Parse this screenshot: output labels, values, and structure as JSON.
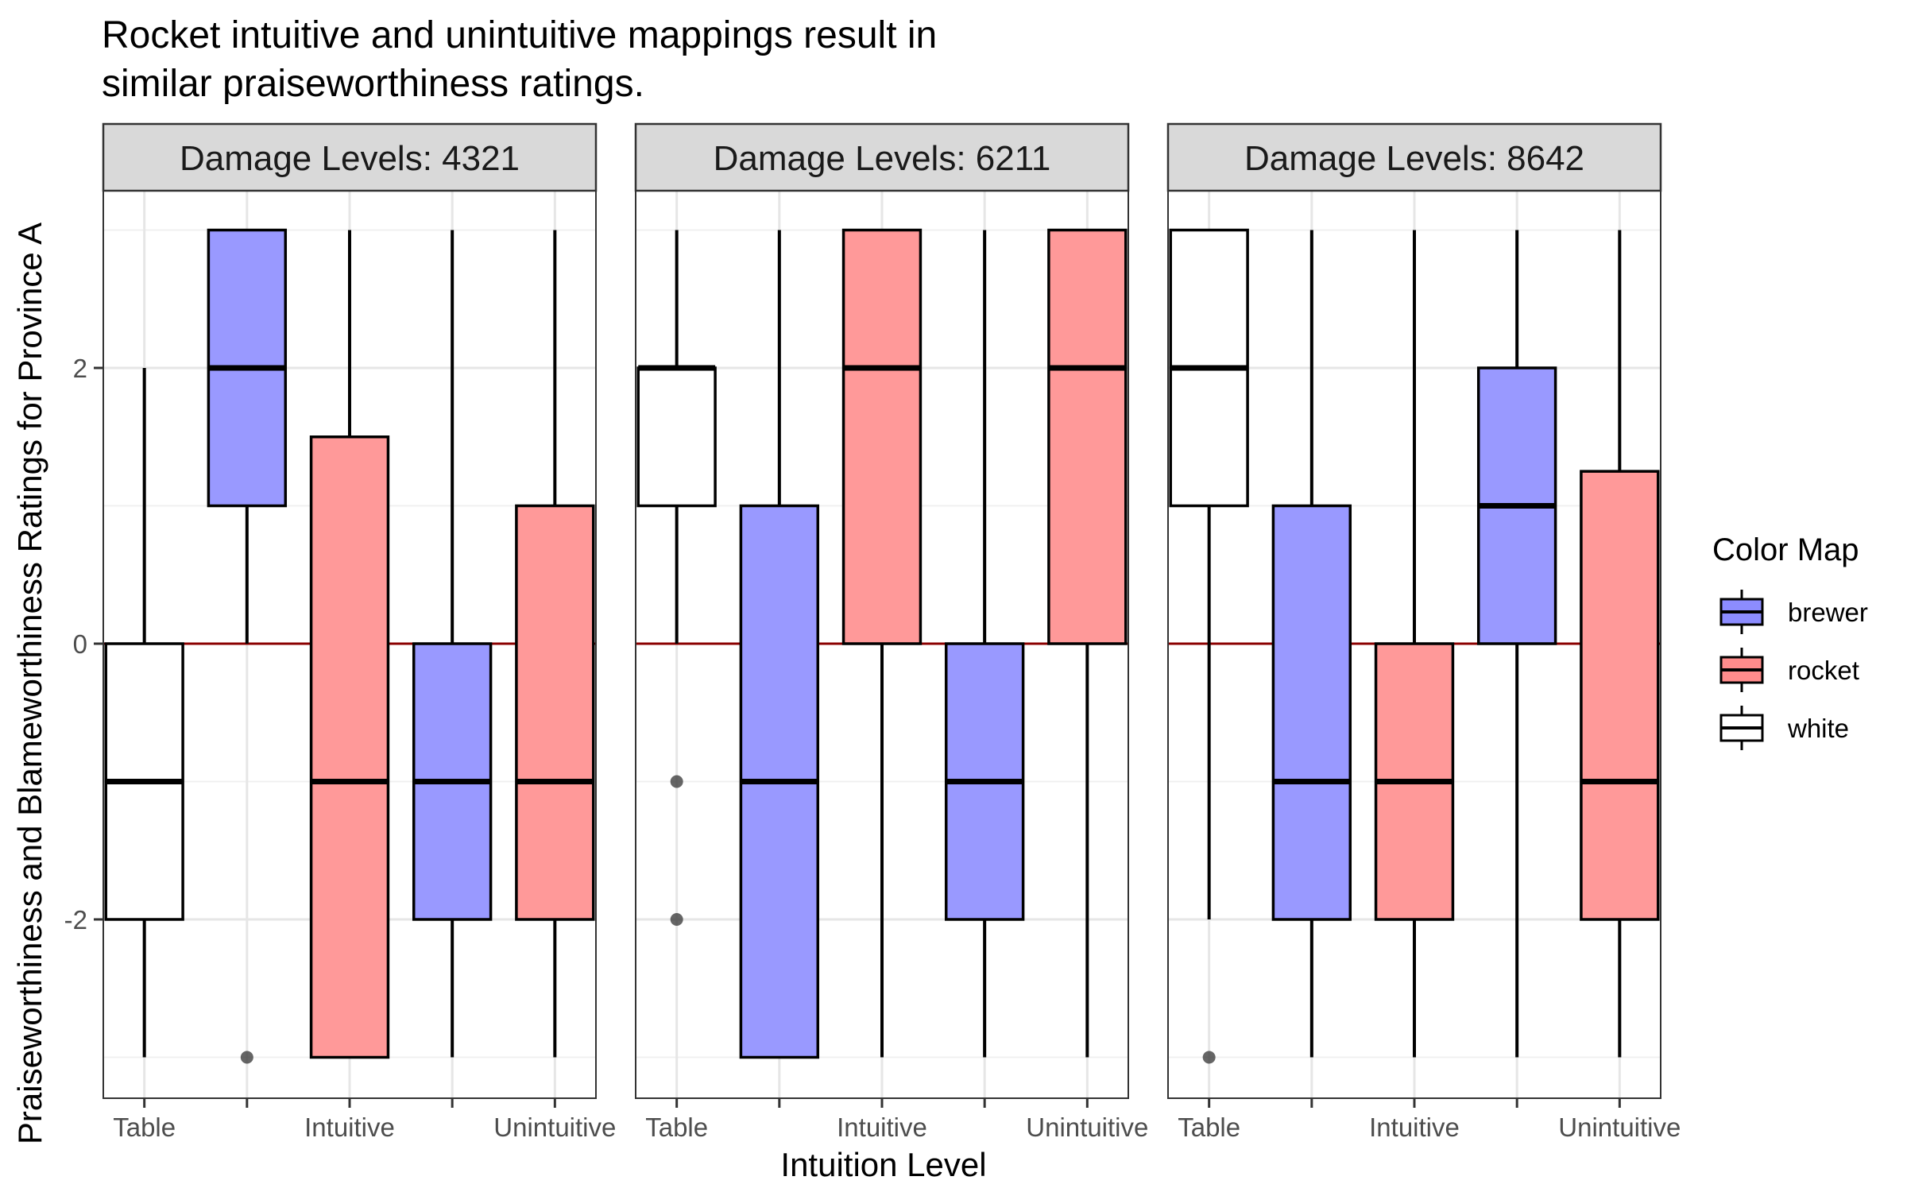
{
  "chart_data": {
    "type": "boxplot",
    "title": "Rocket intuitive and unintuitive mappings result in similar praiseworthiness ratings.",
    "title_lines": [
      "Rocket intuitive and unintuitive mappings result in",
      "similar praiseworthiness ratings."
    ],
    "xlabel": "Intuition Level",
    "ylabel": "Praiseworthiness and Blameworthiness Ratings for Province A",
    "ylim": [
      -3.15,
      3.3
    ],
    "yticks": [
      -2,
      0,
      2
    ],
    "ytick_labels": [
      "-2",
      "0",
      "2"
    ],
    "reference_line_y": 0,
    "x_positions": 5,
    "x_tick_labels": [
      "Table",
      "",
      "Intuitive",
      "",
      "Unintuitive"
    ],
    "grid": true,
    "legend": {
      "title": "Color Map",
      "position": "right",
      "entries": [
        {
          "label": "brewer",
          "color": "#8c8cff"
        },
        {
          "label": "rocket",
          "color": "#ff8c8c"
        },
        {
          "label": "white",
          "color": "#ffffff"
        }
      ]
    },
    "colors": {
      "brewer": "#9999ff",
      "rocket": "#ff9999",
      "white": "#ffffff",
      "reference_line": "#8b0000",
      "strip_fill": "#d9d9d9"
    },
    "panels": [
      {
        "label": "Damage Levels: 4321",
        "boxes": [
          {
            "x": 1,
            "fill": "white",
            "whisker_low": -3,
            "q1": -2,
            "median": -1,
            "q3": 0,
            "whisker_high": 2,
            "outliers": []
          },
          {
            "x": 2,
            "fill": "brewer",
            "whisker_low": 0,
            "q1": 1,
            "median": 2,
            "q3": 3,
            "whisker_high": 3,
            "outliers": [
              -3
            ]
          },
          {
            "x": 3,
            "fill": "rocket",
            "whisker_low": -3,
            "q1": -3,
            "median": -1,
            "q3": 1.5,
            "whisker_high": 3,
            "outliers": []
          },
          {
            "x": 4,
            "fill": "brewer",
            "whisker_low": -3,
            "q1": -2,
            "median": -1,
            "q3": 0,
            "whisker_high": 3,
            "outliers": []
          },
          {
            "x": 5,
            "fill": "rocket",
            "whisker_low": -3,
            "q1": -2,
            "median": -1,
            "q3": 1,
            "whisker_high": 3,
            "outliers": []
          }
        ]
      },
      {
        "label": "Damage Levels: 6211",
        "boxes": [
          {
            "x": 1,
            "fill": "white",
            "whisker_low": 0,
            "q1": 1,
            "median": 2,
            "q3": 2,
            "whisker_high": 3,
            "outliers": [
              -1,
              -2
            ]
          },
          {
            "x": 2,
            "fill": "brewer",
            "whisker_low": -3,
            "q1": -3,
            "median": -1,
            "q3": 1,
            "whisker_high": 3,
            "outliers": []
          },
          {
            "x": 3,
            "fill": "rocket",
            "whisker_low": -3,
            "q1": 0,
            "median": 2,
            "q3": 3,
            "whisker_high": 3,
            "outliers": []
          },
          {
            "x": 4,
            "fill": "brewer",
            "whisker_low": -3,
            "q1": -2,
            "median": -1,
            "q3": 0,
            "whisker_high": 3,
            "outliers": []
          },
          {
            "x": 5,
            "fill": "rocket",
            "whisker_low": -3,
            "q1": 0,
            "median": 2,
            "q3": 3,
            "whisker_high": 3,
            "outliers": []
          }
        ]
      },
      {
        "label": "Damage Levels: 8642",
        "boxes": [
          {
            "x": 1,
            "fill": "white",
            "whisker_low": -2,
            "q1": 1,
            "median": 2,
            "q3": 3,
            "whisker_high": 3,
            "outliers": [
              -3
            ]
          },
          {
            "x": 2,
            "fill": "brewer",
            "whisker_low": -3,
            "q1": -2,
            "median": -1,
            "q3": 1,
            "whisker_high": 3,
            "outliers": []
          },
          {
            "x": 3,
            "fill": "rocket",
            "whisker_low": -3,
            "q1": -2,
            "median": -1,
            "q3": 0,
            "whisker_high": 3,
            "outliers": []
          },
          {
            "x": 4,
            "fill": "brewer",
            "whisker_low": -3,
            "q1": 0,
            "median": 1,
            "q3": 2,
            "whisker_high": 3,
            "outliers": []
          },
          {
            "x": 5,
            "fill": "rocket",
            "whisker_low": -3,
            "q1": -2,
            "median": -1,
            "q3": 1.25,
            "whisker_high": 3,
            "outliers": []
          }
        ]
      }
    ]
  }
}
